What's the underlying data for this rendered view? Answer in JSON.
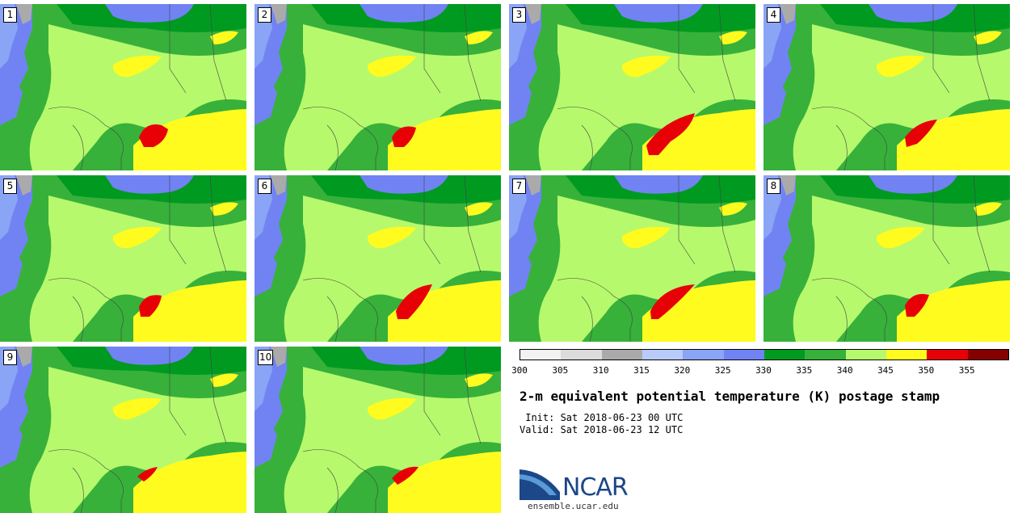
{
  "panels": [
    {
      "label": "1"
    },
    {
      "label": "2"
    },
    {
      "label": "3"
    },
    {
      "label": "4"
    },
    {
      "label": "5"
    },
    {
      "label": "6"
    },
    {
      "label": "7"
    },
    {
      "label": "8"
    },
    {
      "label": "9"
    },
    {
      "label": "10"
    }
  ],
  "colorbar": {
    "unit": "K",
    "colors": [
      "#f2f2f2",
      "#dcdcdc",
      "#aaaaaa",
      "#b9cbfb",
      "#8aa4f6",
      "#7183f2",
      "#009a21",
      "#37b13a",
      "#b6f96c",
      "#fffb1f",
      "#e80007",
      "#860000"
    ],
    "ticks": [
      "300",
      "305",
      "310",
      "315",
      "320",
      "325",
      "330",
      "335",
      "340",
      "345",
      "350",
      "355"
    ]
  },
  "title": "2-m equivalent potential temperature (K) postage stamp",
  "init_text": " Init: Sat 2018-06-23 00 UTC",
  "valid_text": "Valid: Sat 2018-06-23 12 UTC",
  "logo": {
    "text": "NCAR",
    "url": "ensemble.ucar.edu"
  }
}
